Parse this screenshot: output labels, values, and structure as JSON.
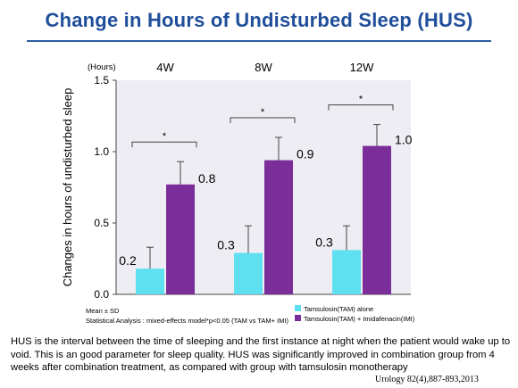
{
  "title": "Change in Hours of Undisturbed Sleep (HUS)",
  "chart_data": {
    "type": "bar",
    "unit_label": "(Hours)",
    "ylabel": "Changes in hours of undisturbed sleep",
    "ylim": [
      0,
      1.5
    ],
    "yticks": [
      "0.0",
      "0.5",
      "1.0",
      "1.5"
    ],
    "categories": [
      "4W",
      "8W",
      "12W"
    ],
    "series": [
      {
        "name": "Tamsulosin(TAM)   alone",
        "color": "#5ee0f0",
        "values": [
          0.18,
          0.29,
          0.31
        ],
        "errors": [
          0.15,
          0.19,
          0.17
        ],
        "labels": [
          "0.2",
          "0.3",
          "0.3"
        ]
      },
      {
        "name": "Tamsulosin(TAM) + Imidafenacin(IMI)",
        "color": "#7b2d9a",
        "values": [
          0.77,
          0.94,
          1.04
        ],
        "errors": [
          0.16,
          0.16,
          0.15
        ],
        "labels": [
          "0.8",
          "0.9",
          "1.0"
        ]
      }
    ],
    "significance": [
      "*",
      "*",
      "*"
    ],
    "grid": false,
    "legend_position": "bottom-right"
  },
  "notes": {
    "mean_sd": "Mean ± SD",
    "stat": "Statistical Analysis : mixed-effects model*p<0.05 (TAM vs TAM+ IMI)"
  },
  "footnote": "HUS is the interval between the time of sleeping and the first instance at night when the patient would wake up to void. This is an good parameter for sleep quality. HUS was significantly improved in combination group from 4 weeks after combination treatment, as compared with group with tamsulosin monotherapy",
  "citation": "Urology  82(4),887-893,2013"
}
